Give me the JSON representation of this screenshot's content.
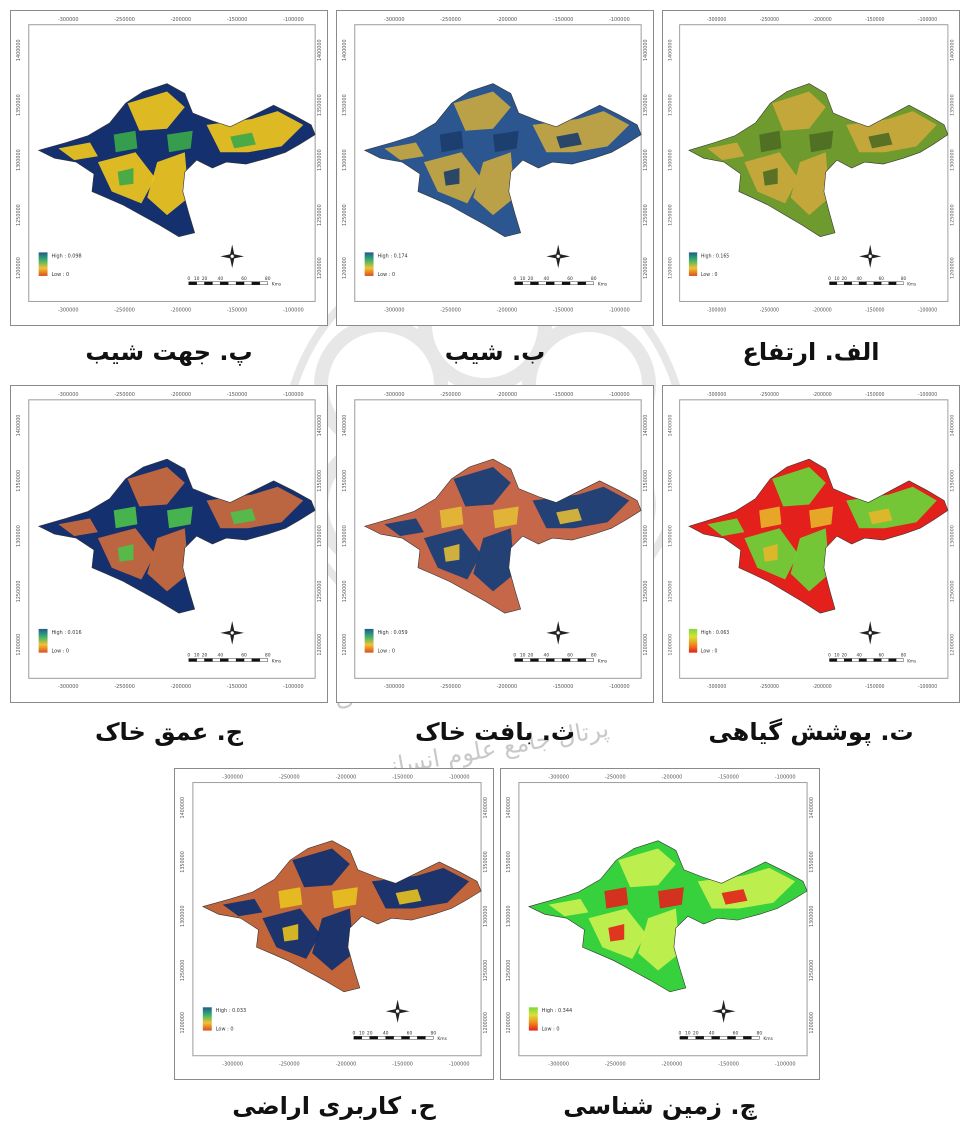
{
  "panels": [
    {
      "id": "elevation",
      "caption": "الف. ارتفاع",
      "legend_high": "High : 0.165",
      "legend_low": "Low : 0",
      "scale_ticks": [
        "0",
        "10",
        "20",
        "40",
        "60",
        "80"
      ],
      "scale_unit": "Kms",
      "axis_top": [
        "-300000",
        "-250000",
        "-200000",
        "-150000",
        "-100000"
      ],
      "axis_left": [
        "1400000",
        "1350000",
        "1300000",
        "1250000",
        "1200000"
      ],
      "legend_colors": [
        "#1f5a8e",
        "#3bb36b",
        "#f1c232",
        "#d94f1e"
      ],
      "map_palette": {
        "base": "#6f9a2e",
        "patch": "#c7a83b",
        "dark": "#4d6b22"
      }
    },
    {
      "id": "slope",
      "caption": "ب. شیب",
      "legend_high": "High : 0.174",
      "legend_low": "Low : 0",
      "scale_ticks": [
        "0",
        "10",
        "20",
        "40",
        "60",
        "80"
      ],
      "scale_unit": "Kms",
      "axis_top": [
        "-300000",
        "-250000",
        "-200000",
        "-150000",
        "-100000"
      ],
      "axis_left": [
        "1400000",
        "1350000",
        "1300000",
        "1250000",
        "1200000"
      ],
      "legend_colors": [
        "#1f5a8e",
        "#3bb36b",
        "#f1c232",
        "#d94f1e"
      ],
      "map_palette": {
        "base": "#2c5690",
        "patch": "#c2a443",
        "dark": "#1c3d6b"
      }
    },
    {
      "id": "aspect",
      "caption": "پ. جهت شیب",
      "legend_high": "High : 0.098",
      "legend_low": "Low : 0",
      "scale_ticks": [
        "0",
        "10",
        "20",
        "40",
        "60",
        "80"
      ],
      "scale_unit": "Kms",
      "axis_top": [
        "-300000",
        "-250000",
        "-200000",
        "-150000",
        "-100000"
      ],
      "axis_left": [
        "1400000",
        "1350000",
        "1300000",
        "1250000",
        "1200000"
      ],
      "legend_colors": [
        "#1f5a8e",
        "#3bb36b",
        "#f1c232",
        "#d94f1e"
      ],
      "map_palette": {
        "base": "#14306e",
        "patch": "#e8c21f",
        "dark": "#3aa84a"
      }
    },
    {
      "id": "vegetation",
      "caption": "ت. پوشش گیاهی",
      "legend_high": "High : 0.063",
      "legend_low": "Low : 0",
      "scale_ticks": [
        "0",
        "10",
        "20",
        "40",
        "60",
        "80"
      ],
      "scale_unit": "Kms",
      "axis_top": [
        "-300000",
        "-250000",
        "-200000",
        "-150000",
        "-100000"
      ],
      "axis_left": [
        "1400000",
        "1350000",
        "1300000",
        "1250000",
        "1200000"
      ],
      "legend_colors": [
        "#7bd83c",
        "#d8e03a",
        "#ef8a1c",
        "#e3201b"
      ],
      "map_palette": {
        "base": "#e3201b",
        "patch": "#6fd038",
        "dark": "#e5b52a"
      }
    },
    {
      "id": "soil-texture",
      "caption": "ث. بافت خاک",
      "legend_high": "High : 0.059",
      "legend_low": "Low : 0",
      "scale_ticks": [
        "0",
        "10",
        "20",
        "40",
        "60",
        "80"
      ],
      "scale_unit": "Kms",
      "axis_top": [
        "-300000",
        "-250000",
        "-200000",
        "-150000",
        "-100000"
      ],
      "axis_left": [
        "1400000",
        "1350000",
        "1300000",
        "1250000",
        "1200000"
      ],
      "legend_colors": [
        "#1f5a8e",
        "#3bb36b",
        "#f1c232",
        "#d94f1e"
      ],
      "map_palette": {
        "base": "#c7674a",
        "patch": "#1b3f78",
        "dark": "#e3bd36"
      }
    },
    {
      "id": "soil-depth",
      "caption": "ج. عمق خاک",
      "legend_high": "High : 0.016",
      "legend_low": "Low : 0",
      "scale_ticks": [
        "0",
        "10",
        "20",
        "40",
        "60",
        "80"
      ],
      "scale_unit": "Kms",
      "axis_top": [
        "-300000",
        "-250000",
        "-200000",
        "-150000",
        "-100000"
      ],
      "axis_left": [
        "1400000",
        "1350000",
        "1300000",
        "1250000",
        "1200000"
      ],
      "legend_colors": [
        "#1f5a8e",
        "#3bb36b",
        "#f1c232",
        "#d94f1e"
      ],
      "map_palette": {
        "base": "#14306e",
        "patch": "#c4683e",
        "dark": "#4cc24a"
      }
    },
    {
      "id": "land-use",
      "caption": "ح. کاربری اراضی",
      "legend_high": "High : 0.033",
      "legend_low": "Low : 0",
      "scale_ticks": [
        "0",
        "10",
        "20",
        "40",
        "60",
        "80"
      ],
      "scale_unit": "Kms",
      "axis_top": [
        "-300000",
        "-250000",
        "-200000",
        "-150000",
        "-100000"
      ],
      "axis_left": [
        "1400000",
        "1350000",
        "1300000",
        "1250000",
        "1200000"
      ],
      "legend_colors": [
        "#1f5a8e",
        "#3bb36b",
        "#f1c232",
        "#d94f1e"
      ],
      "map_palette": {
        "base": "#c3653b",
        "patch": "#14306e",
        "dark": "#e8c21f"
      }
    },
    {
      "id": "geology",
      "caption": "چ. زمین شناسی",
      "legend_high": "High : 0.344",
      "legend_low": "Low : 0",
      "scale_ticks": [
        "0",
        "10",
        "20",
        "40",
        "60",
        "80"
      ],
      "scale_unit": "Kms",
      "axis_top": [
        "-300000",
        "-250000",
        "-200000",
        "-150000",
        "-100000"
      ],
      "axis_left": [
        "1400000",
        "1350000",
        "1300000",
        "1250000",
        "1200000"
      ],
      "legend_colors": [
        "#7bd83c",
        "#d8e03a",
        "#ef8a1c",
        "#e3201b"
      ],
      "map_palette": {
        "base": "#36d13c",
        "patch": "#c4ef4f",
        "dark": "#e3201b"
      }
    }
  ],
  "watermark": {
    "line1": "پژوهشگاه علوم انسانی و مطالعات فرهنگی",
    "line2": "پرتال جامع علوم انسانی"
  }
}
